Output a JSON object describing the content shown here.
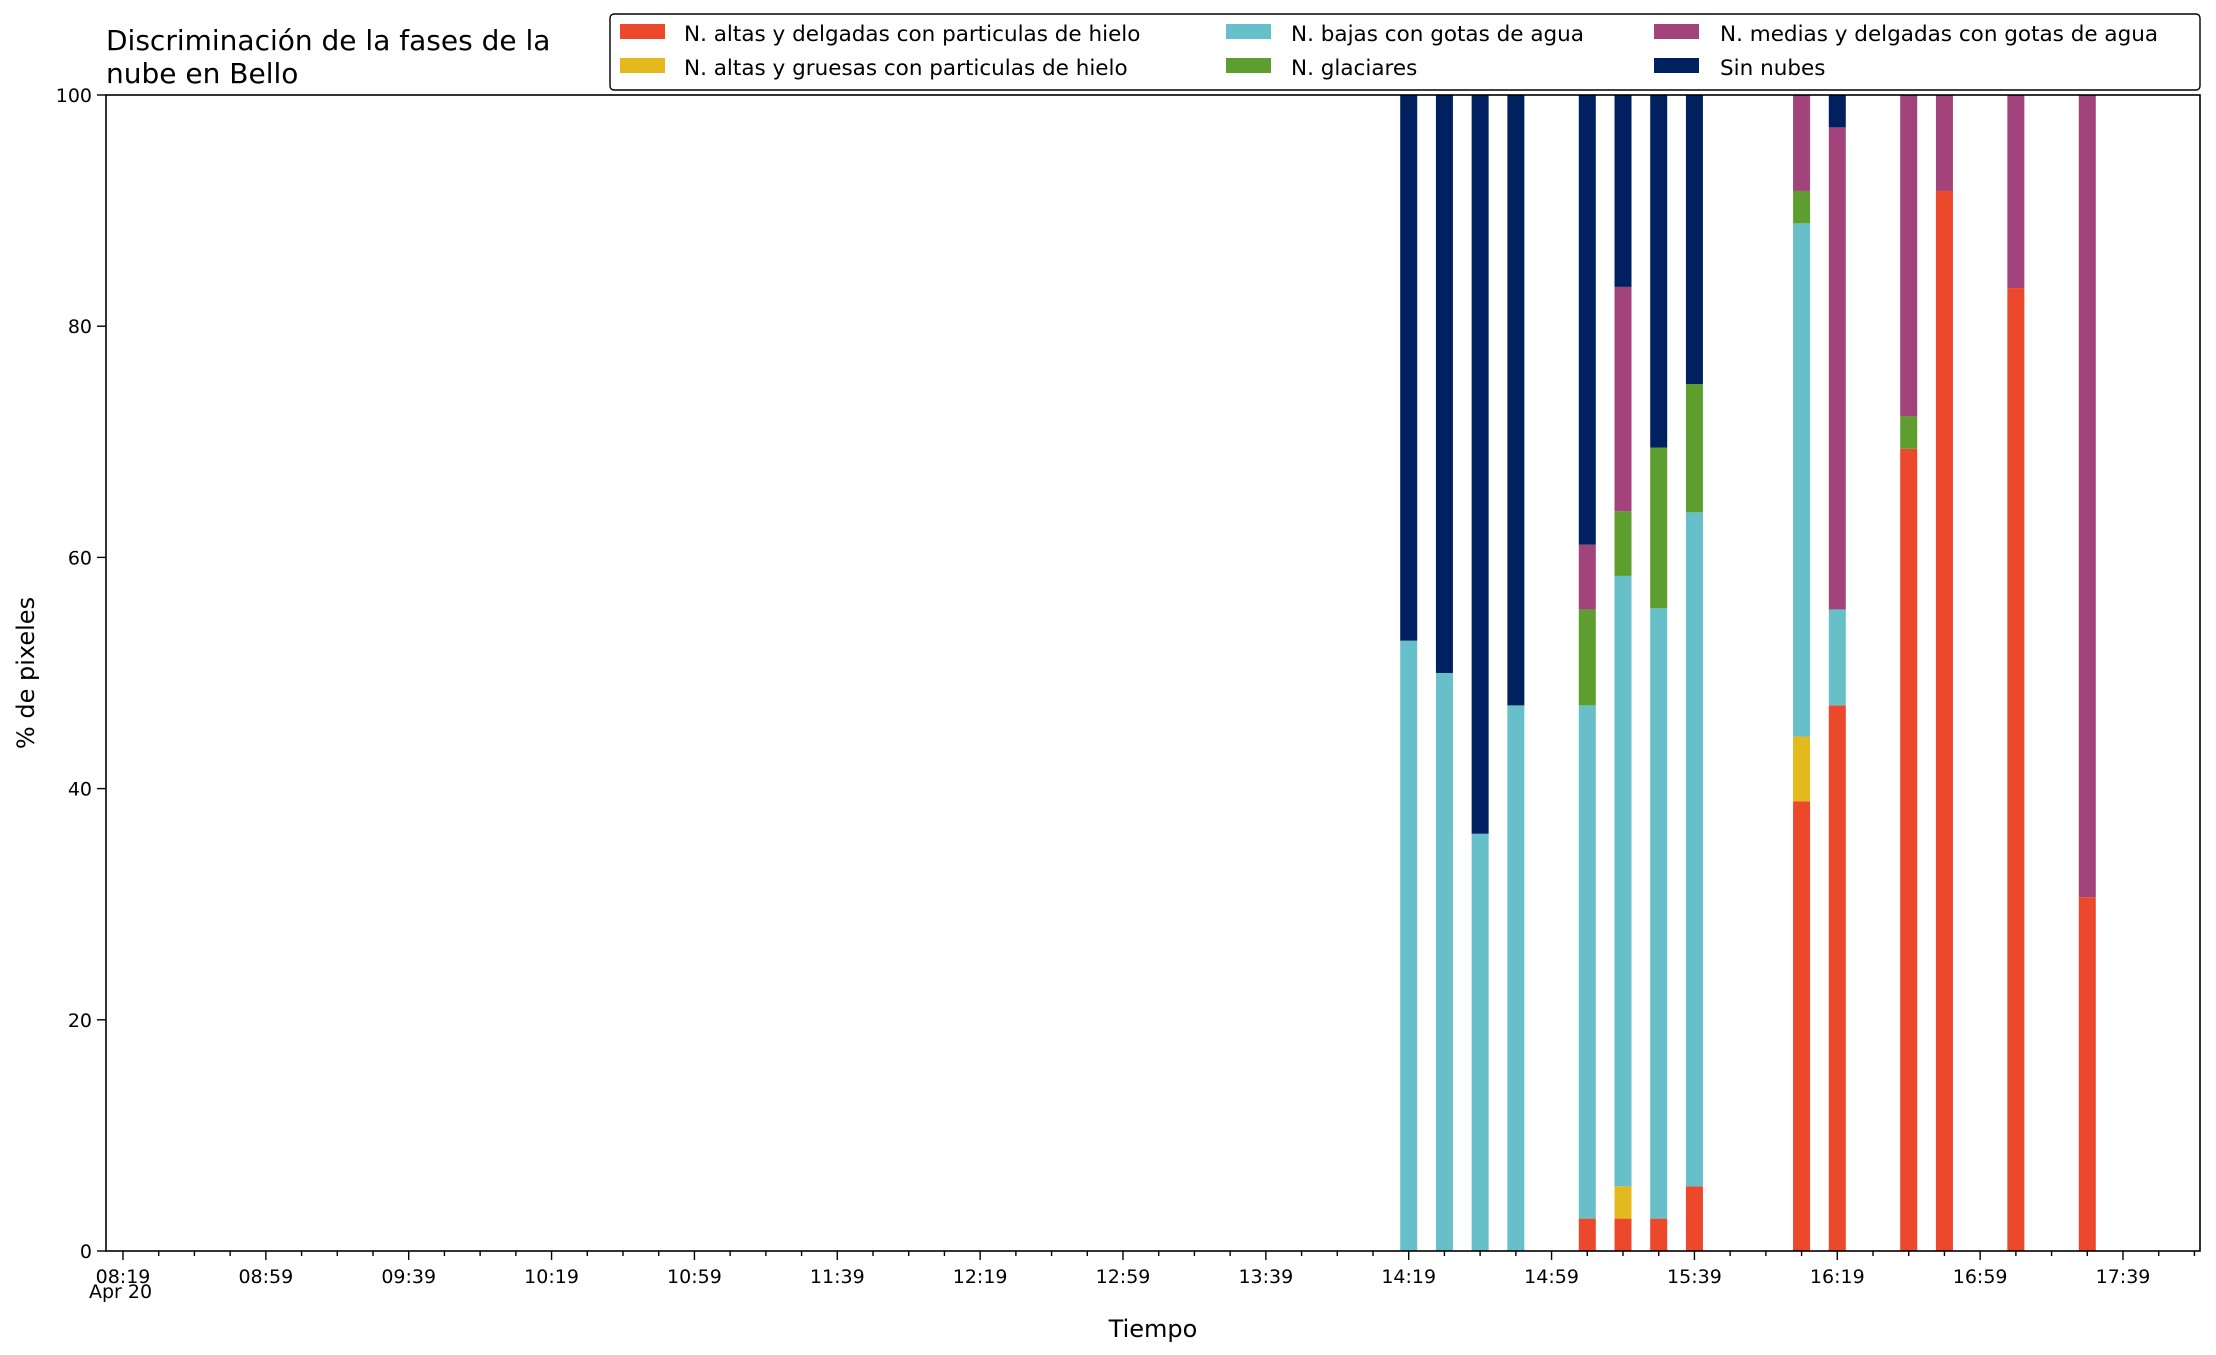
{
  "chart_data": {
    "type": "bar",
    "stacked": true,
    "title_lines": [
      "Discriminación de la fases de la",
      "nube en Bello"
    ],
    "xlabel": "Tiempo",
    "ylabel": "% de pixeles",
    "ylim": [
      0,
      100
    ],
    "y_ticks": [
      0,
      20,
      40,
      60,
      80,
      100
    ],
    "x_date_label": "Apr 20",
    "x_range": [
      "08:19",
      "17:59"
    ],
    "x_major_ticks": [
      "08:19",
      "08:59",
      "09:39",
      "10:19",
      "10:59",
      "11:39",
      "12:19",
      "12:59",
      "13:39",
      "14:19",
      "14:59",
      "15:39",
      "16:19",
      "16:59",
      "17:39"
    ],
    "x_minor_tick_step_minutes": 10,
    "legend_position": "top-right",
    "legend_columns": 3,
    "series": [
      {
        "name": "N. altas y delgadas con particulas de hielo",
        "color": "#ec482c"
      },
      {
        "name": "N. altas y gruesas con particulas de hielo",
        "color": "#e4b91e"
      },
      {
        "name": "N. bajas con gotas de agua",
        "color": "#66bfc9"
      },
      {
        "name": "N. glaciares",
        "color": "#5d9e2e"
      },
      {
        "name": "N. medias y delgadas con gotas de agua",
        "color": "#a3437b"
      },
      {
        "name": "Sin nubes",
        "color": "#00205f"
      }
    ],
    "bars": [
      {
        "time": "14:19",
        "values": [
          0,
          0,
          52.8,
          0,
          0,
          47.2
        ]
      },
      {
        "time": "14:29",
        "values": [
          0,
          0,
          50.0,
          0,
          0,
          50.0
        ]
      },
      {
        "time": "14:39",
        "values": [
          0,
          0,
          36.1,
          0,
          0,
          63.9
        ]
      },
      {
        "time": "14:49",
        "values": [
          0,
          0,
          47.2,
          0,
          0,
          52.8
        ]
      },
      {
        "time": "15:09",
        "values": [
          2.8,
          0,
          44.4,
          8.3,
          5.6,
          38.9
        ]
      },
      {
        "time": "15:19",
        "values": [
          2.8,
          2.8,
          52.8,
          5.6,
          19.4,
          16.6
        ]
      },
      {
        "time": "15:29",
        "values": [
          2.8,
          0,
          52.8,
          13.9,
          0,
          30.5
        ]
      },
      {
        "time": "15:39",
        "values": [
          5.6,
          0,
          58.3,
          11.1,
          0,
          25.0
        ]
      },
      {
        "time": "16:09",
        "values": [
          38.9,
          5.6,
          44.4,
          2.8,
          8.3,
          0
        ]
      },
      {
        "time": "16:19",
        "values": [
          47.2,
          0,
          8.3,
          0,
          41.7,
          2.8
        ]
      },
      {
        "time": "16:39",
        "values": [
          69.4,
          0,
          0,
          2.8,
          27.8,
          0
        ]
      },
      {
        "time": "16:49",
        "values": [
          91.7,
          0,
          0,
          0,
          8.3,
          0
        ]
      },
      {
        "time": "17:09",
        "values": [
          83.3,
          0,
          0,
          0,
          16.7,
          0
        ]
      },
      {
        "time": "17:29",
        "values": [
          30.6,
          0,
          0,
          0,
          69.4,
          0
        ]
      }
    ]
  }
}
